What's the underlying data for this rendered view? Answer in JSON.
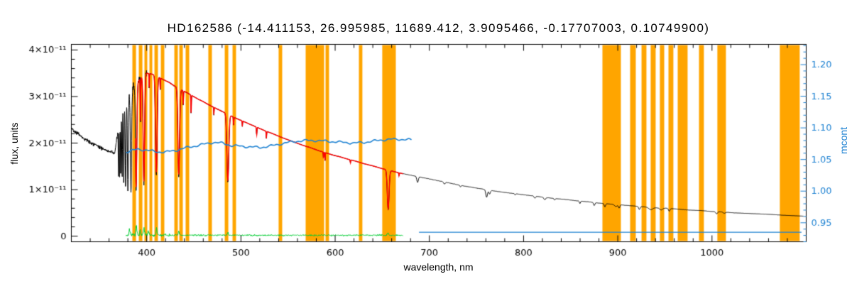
{
  "chart_data": {
    "type": "line",
    "title": "HD162586    (-14.411153, 26.995985, 11689.412, 3.9095466, -0.17707003, 0.10749900)",
    "xlabel": "wavelength, nm",
    "ylabel_left": "flux, units",
    "ylabel_right": "mcont",
    "xlim": [
      320,
      1100
    ],
    "ylim_left_1e11": [
      -0.12,
      4.12
    ],
    "ylim_right": [
      0.92,
      1.232
    ],
    "grid": false,
    "legend": "none",
    "x_ticks": [
      {
        "v": 400,
        "label": "400"
      },
      {
        "v": 500,
        "label": "500"
      },
      {
        "v": 600,
        "label": "600"
      },
      {
        "v": 700,
        "label": "700"
      },
      {
        "v": 800,
        "label": "800"
      },
      {
        "v": 900,
        "label": "900"
      },
      {
        "v": 1000,
        "label": "1000"
      }
    ],
    "x_minor_step": 20,
    "y_left_ticks": [
      {
        "v": 0,
        "label": "0"
      },
      {
        "v": 1,
        "label": "1×10⁻¹¹"
      },
      {
        "v": 2,
        "label": "2×10⁻¹¹"
      },
      {
        "v": 3,
        "label": "3×10⁻¹¹"
      },
      {
        "v": 4,
        "label": "4×10⁻¹¹"
      }
    ],
    "y_left_minor_step": 0.2,
    "y_right_ticks": [
      {
        "v": 0.95,
        "label": "0.95"
      },
      {
        "v": 1.0,
        "label": "1.00"
      },
      {
        "v": 1.05,
        "label": "1.05"
      },
      {
        "v": 1.1,
        "label": "1.10"
      },
      {
        "v": 1.15,
        "label": "1.15"
      },
      {
        "v": 1.2,
        "label": "1.20"
      }
    ],
    "y_right_minor_step": 0.01,
    "colors": {
      "observed": "#000000",
      "model": "#ff0000",
      "mcont": "#1e82d2",
      "residual": "#00cc33",
      "mask": "#ffa500",
      "frame": "#000000"
    },
    "masked_regions_nm": [
      [
        384.8,
        388.6
      ],
      [
        391.6,
        395.4
      ],
      [
        397.6,
        400.6
      ],
      [
        402.9,
        405.9
      ],
      [
        408.2,
        411.9
      ],
      [
        415.0,
        418.7
      ],
      [
        429.3,
        433.0
      ],
      [
        434.6,
        438.3
      ],
      [
        441.3,
        445.1
      ],
      [
        465.4,
        469.2
      ],
      [
        482.8,
        486.6
      ],
      [
        491.1,
        494.8
      ],
      [
        540.0,
        543.8
      ],
      [
        568.7,
        588.3
      ],
      [
        589.8,
        593.5
      ],
      [
        625.2,
        628.9
      ],
      [
        650.0,
        664.4
      ],
      [
        883.7,
        903.3
      ],
      [
        913.1,
        919.1
      ],
      [
        925.2,
        930.4
      ],
      [
        934.9,
        940.2
      ],
      [
        944.7,
        949.3
      ],
      [
        953.8,
        959.0
      ],
      [
        963.6,
        974.1
      ],
      [
        986.2,
        991.4
      ],
      [
        1005.7,
        1014.8
      ],
      [
        1072.0,
        1093.1
      ]
    ],
    "absorption_lines_nm_depth_sigma": [
      [
        370.0,
        0.45,
        0.25
      ],
      [
        371.2,
        0.5,
        0.28
      ],
      [
        372.4,
        0.52,
        0.3
      ],
      [
        373.9,
        0.55,
        0.33
      ],
      [
        375.6,
        0.6,
        0.38
      ],
      [
        377.6,
        0.65,
        0.45
      ],
      [
        380.0,
        0.68,
        0.5
      ],
      [
        383.3,
        0.7,
        0.6
      ],
      [
        388.8,
        0.7,
        0.7
      ],
      [
        393.4,
        0.3,
        0.25
      ],
      [
        397.0,
        0.68,
        0.75
      ],
      [
        402.6,
        0.1,
        0.2
      ],
      [
        410.2,
        0.62,
        0.85
      ],
      [
        414.4,
        0.08,
        0.2
      ],
      [
        434.0,
        0.6,
        0.9
      ],
      [
        438.8,
        0.1,
        0.25
      ],
      [
        447.1,
        0.14,
        0.25
      ],
      [
        471.3,
        0.06,
        0.2
      ],
      [
        486.1,
        0.56,
        1.0
      ],
      [
        492.2,
        0.07,
        0.25
      ],
      [
        501.5,
        0.05,
        0.2
      ],
      [
        516.7,
        0.07,
        0.3
      ],
      [
        527.0,
        0.07,
        0.25
      ],
      [
        587.6,
        0.07,
        0.25
      ],
      [
        589.3,
        0.1,
        0.22
      ],
      [
        616.2,
        0.04,
        0.25
      ],
      [
        656.3,
        0.6,
        0.95
      ],
      [
        667.8,
        0.05,
        0.25
      ]
    ],
    "telluric_lines_nm_depth_sigma": [
      [
        687.5,
        0.1,
        0.8
      ],
      [
        716.0,
        0.04,
        0.8
      ],
      [
        733.0,
        0.03,
        0.6
      ],
      [
        760.8,
        0.16,
        0.9
      ],
      [
        764.0,
        0.08,
        0.8
      ],
      [
        791.0,
        0.03,
        0.5
      ],
      [
        812.0,
        0.05,
        0.8
      ],
      [
        822.5,
        0.06,
        1.0
      ],
      [
        833.0,
        0.04,
        0.6
      ],
      [
        859.8,
        0.07,
        0.6
      ],
      [
        875.0,
        0.09,
        0.7
      ],
      [
        886.3,
        0.1,
        0.7
      ],
      [
        898.0,
        0.06,
        1.5
      ],
      [
        901.5,
        0.1,
        0.7
      ],
      [
        922.9,
        0.1,
        0.8
      ],
      [
        935.0,
        0.08,
        2.0
      ],
      [
        946.0,
        0.07,
        1.5
      ],
      [
        954.6,
        0.1,
        0.8
      ],
      [
        1004.9,
        0.09,
        0.9
      ],
      [
        1013.0,
        0.05,
        1.2
      ]
    ],
    "series": {
      "observed_spectrum": {
        "color": "#000000",
        "axis": "left",
        "range_nm": [
          320.5,
          1097
        ],
        "noise_frac_uv": 0.028,
        "noise_frac_forest": 0.045,
        "noise_frac": 0.005,
        "continuum_anchors_nm_flux1e11": [
          [
            320,
            2.32
          ],
          [
            328,
            2.18
          ],
          [
            336,
            2.06
          ],
          [
            344,
            1.97
          ],
          [
            352,
            1.89
          ],
          [
            360,
            1.82
          ],
          [
            366,
            1.77
          ],
          [
            370,
            2.35
          ],
          [
            374,
            2.72
          ],
          [
            378,
            2.96
          ],
          [
            382,
            3.1
          ],
          [
            386,
            3.2
          ],
          [
            390,
            3.3
          ],
          [
            395,
            3.42
          ],
          [
            400,
            3.5
          ],
          [
            406,
            3.48
          ],
          [
            412,
            3.42
          ],
          [
            418,
            3.36
          ],
          [
            424,
            3.3
          ],
          [
            430,
            3.22
          ],
          [
            436,
            3.15
          ],
          [
            442,
            3.09
          ],
          [
            448,
            3.02
          ],
          [
            454,
            2.95
          ],
          [
            460,
            2.89
          ],
          [
            466,
            2.82
          ],
          [
            472,
            2.76
          ],
          [
            478,
            2.7
          ],
          [
            484,
            2.64
          ],
          [
            490,
            2.58
          ],
          [
            496,
            2.52
          ],
          [
            502,
            2.47
          ],
          [
            510,
            2.4
          ],
          [
            518,
            2.33
          ],
          [
            526,
            2.26
          ],
          [
            534,
            2.2
          ],
          [
            542,
            2.13
          ],
          [
            550,
            2.07
          ],
          [
            558,
            2.01
          ],
          [
            566,
            1.95
          ],
          [
            574,
            1.9
          ],
          [
            582,
            1.84
          ],
          [
            590,
            1.79
          ],
          [
            598,
            1.74
          ],
          [
            606,
            1.7
          ],
          [
            614,
            1.65
          ],
          [
            622,
            1.61
          ],
          [
            630,
            1.56
          ],
          [
            640,
            1.51
          ],
          [
            650,
            1.45
          ],
          [
            660,
            1.4
          ],
          [
            670,
            1.35
          ],
          [
            680,
            1.31
          ],
          [
            690,
            1.27
          ],
          [
            700,
            1.23
          ],
          [
            712,
            1.18
          ],
          [
            724,
            1.13
          ],
          [
            736,
            1.08
          ],
          [
            748,
            1.04
          ],
          [
            760,
            1.0
          ],
          [
            772,
            0.96
          ],
          [
            784,
            0.93
          ],
          [
            796,
            0.9
          ],
          [
            808,
            0.87
          ],
          [
            820,
            0.84
          ],
          [
            832,
            0.81
          ],
          [
            844,
            0.79
          ],
          [
            856,
            0.76
          ],
          [
            868,
            0.74
          ],
          [
            880,
            0.71
          ],
          [
            892,
            0.69
          ],
          [
            904,
            0.67
          ],
          [
            916,
            0.65
          ],
          [
            928,
            0.63
          ],
          [
            940,
            0.61
          ],
          [
            952,
            0.6
          ],
          [
            964,
            0.58
          ],
          [
            976,
            0.56
          ],
          [
            988,
            0.55
          ],
          [
            1000,
            0.53
          ],
          [
            1012,
            0.52
          ],
          [
            1024,
            0.5
          ],
          [
            1036,
            0.49
          ],
          [
            1048,
            0.48
          ],
          [
            1060,
            0.47
          ],
          [
            1075,
            0.45
          ],
          [
            1097,
            0.43
          ]
        ]
      },
      "model_fit": {
        "color": "#ff0000",
        "axis": "left",
        "range_nm": [
          388,
          672
        ],
        "depth_scale": 0.97
      },
      "mcont_ratio": {
        "color": "#1e82d2",
        "axis": "right",
        "points_nm_value": [
          [
            378,
            1.062
          ],
          [
            390,
            1.066
          ],
          [
            400,
            1.065
          ],
          [
            410,
            1.062
          ],
          [
            420,
            1.062
          ],
          [
            430,
            1.064
          ],
          [
            440,
            1.068
          ],
          [
            450,
            1.071
          ],
          [
            460,
            1.074
          ],
          [
            470,
            1.077
          ],
          [
            480,
            1.076
          ],
          [
            490,
            1.072
          ],
          [
            500,
            1.071
          ],
          [
            510,
            1.07
          ],
          [
            520,
            1.069
          ],
          [
            530,
            1.071
          ],
          [
            540,
            1.074
          ],
          [
            550,
            1.077
          ],
          [
            560,
            1.079
          ],
          [
            570,
            1.08
          ],
          [
            580,
            1.08
          ],
          [
            590,
            1.079
          ],
          [
            600,
            1.078
          ],
          [
            610,
            1.077
          ],
          [
            620,
            1.076
          ],
          [
            630,
            1.077
          ],
          [
            640,
            1.079
          ],
          [
            650,
            1.081
          ],
          [
            660,
            1.082
          ],
          [
            670,
            1.082
          ],
          [
            681,
            1.081
          ]
        ]
      },
      "flat_reference": {
        "color": "#1e82d2",
        "axis": "right",
        "range_nm": [
          689,
          1095
        ],
        "value": 0.935
      },
      "residuals": {
        "color": "#00cc33",
        "axis": "left",
        "range_nm": [
          378,
          672
        ],
        "mean_1e11": 0.02,
        "sigma_uv_1e11": 0.05,
        "sigma_1e11": 0.025,
        "spikes_nm_amp": [
          [
            382,
            0.15
          ],
          [
            389,
            0.22
          ],
          [
            393,
            0.12
          ],
          [
            397,
            0.18
          ],
          [
            402,
            0.1
          ],
          [
            410.5,
            0.15
          ],
          [
            434,
            0.08
          ],
          [
            486,
            0.06
          ],
          [
            656,
            0.07
          ]
        ]
      }
    }
  }
}
